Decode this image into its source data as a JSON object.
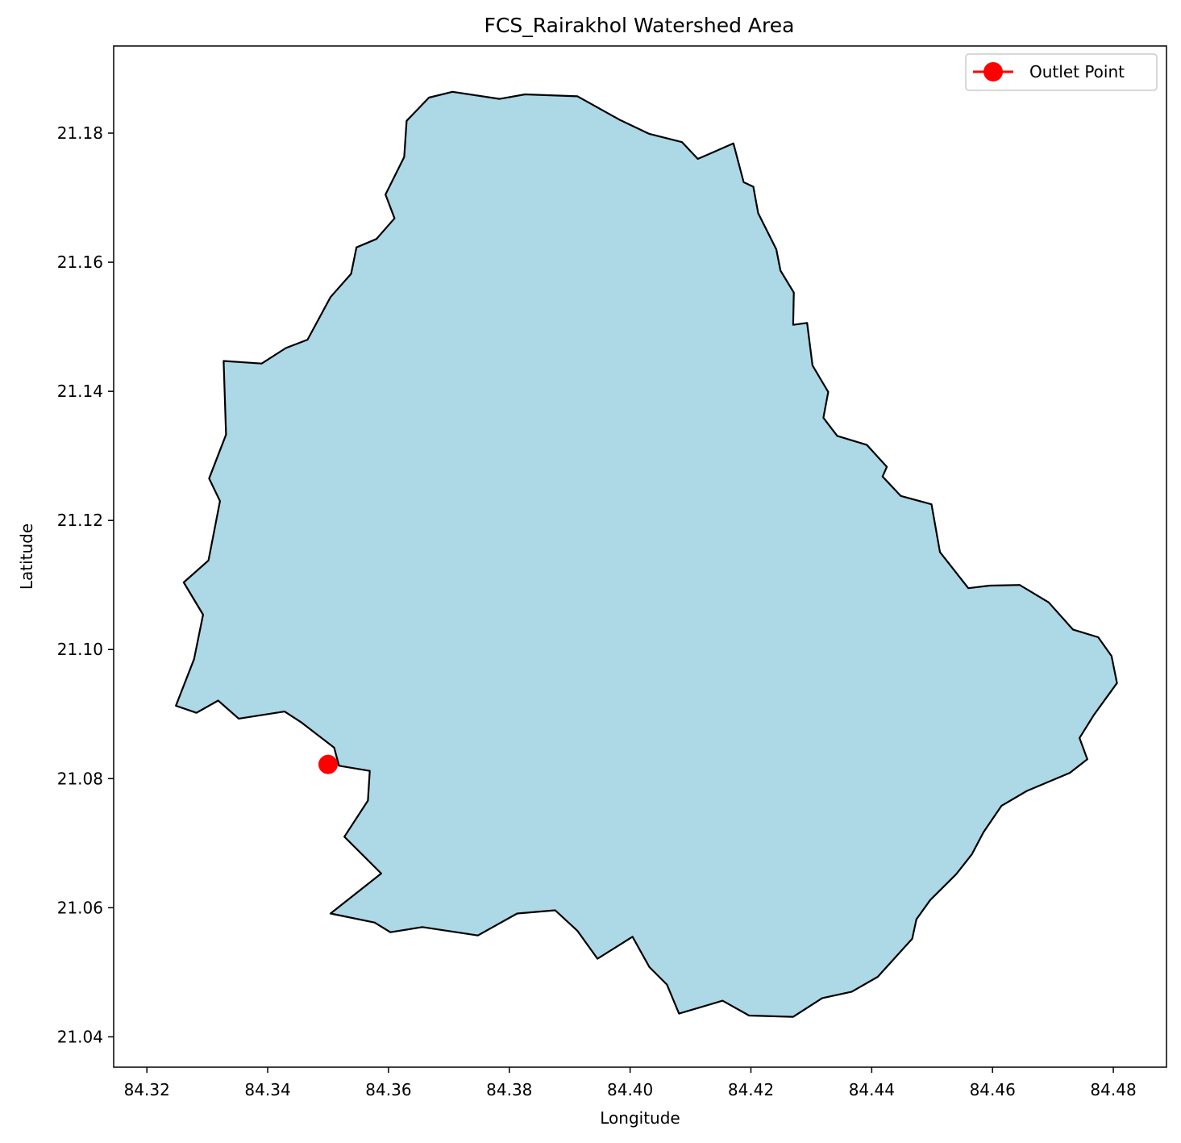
{
  "chart_data": {
    "type": "map",
    "title": "FCS_Rairakhol Watershed Area",
    "xlabel": "Longitude",
    "ylabel": "Latitude",
    "xlim": [
      84.3145,
      84.4888
    ],
    "ylim": [
      21.0353,
      21.1935
    ],
    "xticks": [
      84.32,
      84.34,
      84.36,
      84.38,
      84.4,
      84.42,
      84.44,
      84.46,
      84.48
    ],
    "xtick_labels": [
      "84.32",
      "84.34",
      "84.36",
      "84.38",
      "84.40",
      "84.42",
      "84.44",
      "84.46",
      "84.48"
    ],
    "yticks": [
      21.04,
      21.06,
      21.08,
      21.1,
      21.12,
      21.14,
      21.16,
      21.18
    ],
    "ytick_labels": [
      "21.04",
      "21.06",
      "21.08",
      "21.10",
      "21.12",
      "21.14",
      "21.16",
      "21.18"
    ],
    "grid": false,
    "legend_position": "top-right",
    "watershed": {
      "fill_color": "#add8e6",
      "edge_color": "#000000",
      "boundary": [
        [
          84.3706,
          21.1864
        ],
        [
          84.3784,
          21.1853
        ],
        [
          84.3826,
          21.186
        ],
        [
          84.3913,
          21.1857
        ],
        [
          84.3982,
          21.1821
        ],
        [
          84.4031,
          21.1799
        ],
        [
          84.4086,
          21.1786
        ],
        [
          84.4112,
          21.176
        ],
        [
          84.4171,
          21.1784
        ],
        [
          84.4188,
          21.1724
        ],
        [
          84.4204,
          21.1717
        ],
        [
          84.4212,
          21.1676
        ],
        [
          84.4242,
          21.162
        ],
        [
          84.4249,
          21.1587
        ],
        [
          84.4271,
          21.1553
        ],
        [
          84.427,
          21.1503
        ],
        [
          84.4293,
          21.1506
        ],
        [
          84.4302,
          21.144
        ],
        [
          84.4328,
          21.1399
        ],
        [
          84.432,
          21.1359
        ],
        [
          84.4343,
          21.1331
        ],
        [
          84.4392,
          21.1317
        ],
        [
          84.4425,
          21.1283
        ],
        [
          84.4418,
          21.1268
        ],
        [
          84.4448,
          21.1238
        ],
        [
          84.4499,
          21.1225
        ],
        [
          84.4513,
          21.1151
        ],
        [
          84.456,
          21.1095
        ],
        [
          84.4595,
          21.1099
        ],
        [
          84.4645,
          21.11
        ],
        [
          84.4693,
          21.1073
        ],
        [
          84.4733,
          21.1031
        ],
        [
          84.4775,
          21.1019
        ],
        [
          84.4797,
          21.099
        ],
        [
          84.4806,
          21.0948
        ],
        [
          84.4768,
          21.0899
        ],
        [
          84.4744,
          21.0863
        ],
        [
          84.4757,
          21.083
        ],
        [
          84.4728,
          21.0809
        ],
        [
          84.4657,
          21.0781
        ],
        [
          84.4615,
          21.0758
        ],
        [
          84.4585,
          21.0717
        ],
        [
          84.4566,
          21.0683
        ],
        [
          84.454,
          21.0652
        ],
        [
          84.4497,
          21.0612
        ],
        [
          84.4474,
          21.0582
        ],
        [
          84.4467,
          21.0552
        ],
        [
          84.441,
          21.0493
        ],
        [
          84.4367,
          21.047
        ],
        [
          84.4318,
          21.046
        ],
        [
          84.427,
          21.0431
        ],
        [
          84.4197,
          21.0433
        ],
        [
          84.4153,
          21.0456
        ],
        [
          84.4081,
          21.0436
        ],
        [
          84.4061,
          21.0481
        ],
        [
          84.4032,
          21.0508
        ],
        [
          84.4004,
          21.0555
        ],
        [
          84.3946,
          21.0521
        ],
        [
          84.3913,
          21.0564
        ],
        [
          84.3876,
          21.0596
        ],
        [
          84.3813,
          21.0591
        ],
        [
          84.3748,
          21.0557
        ],
        [
          84.3656,
          21.057
        ],
        [
          84.3603,
          21.0562
        ],
        [
          84.3577,
          21.0577
        ],
        [
          84.3504,
          21.0591
        ],
        [
          84.3588,
          21.0653
        ],
        [
          84.3527,
          21.071
        ],
        [
          84.3566,
          21.0766
        ],
        [
          84.3569,
          21.0812
        ],
        [
          84.3518,
          21.082
        ],
        [
          84.351,
          21.0848
        ],
        [
          84.3456,
          21.0887
        ],
        [
          84.3428,
          21.0904
        ],
        [
          84.3352,
          21.0893
        ],
        [
          84.3318,
          21.0921
        ],
        [
          84.3282,
          21.0902
        ],
        [
          84.3248,
          21.0913
        ],
        [
          84.3278,
          21.0985
        ],
        [
          84.3293,
          21.1054
        ],
        [
          84.3261,
          21.1104
        ],
        [
          84.3302,
          21.1138
        ],
        [
          84.3321,
          21.123
        ],
        [
          84.3303,
          21.1265
        ],
        [
          84.3331,
          21.1333
        ],
        [
          84.3327,
          21.1447
        ],
        [
          84.339,
          21.1443
        ],
        [
          84.343,
          21.1467
        ],
        [
          84.3466,
          21.148
        ],
        [
          84.3504,
          21.1546
        ],
        [
          84.3538,
          21.1582
        ],
        [
          84.3547,
          21.1623
        ],
        [
          84.358,
          21.1636
        ],
        [
          84.361,
          21.1668
        ],
        [
          84.3595,
          21.1705
        ],
        [
          84.3626,
          21.1763
        ],
        [
          84.363,
          21.1819
        ],
        [
          84.3667,
          21.1855
        ]
      ]
    },
    "series": [
      {
        "name": "Outlet Point",
        "type": "point",
        "color": "#ff0000",
        "x": [
          84.35
        ],
        "y": [
          21.0822
        ]
      }
    ]
  }
}
